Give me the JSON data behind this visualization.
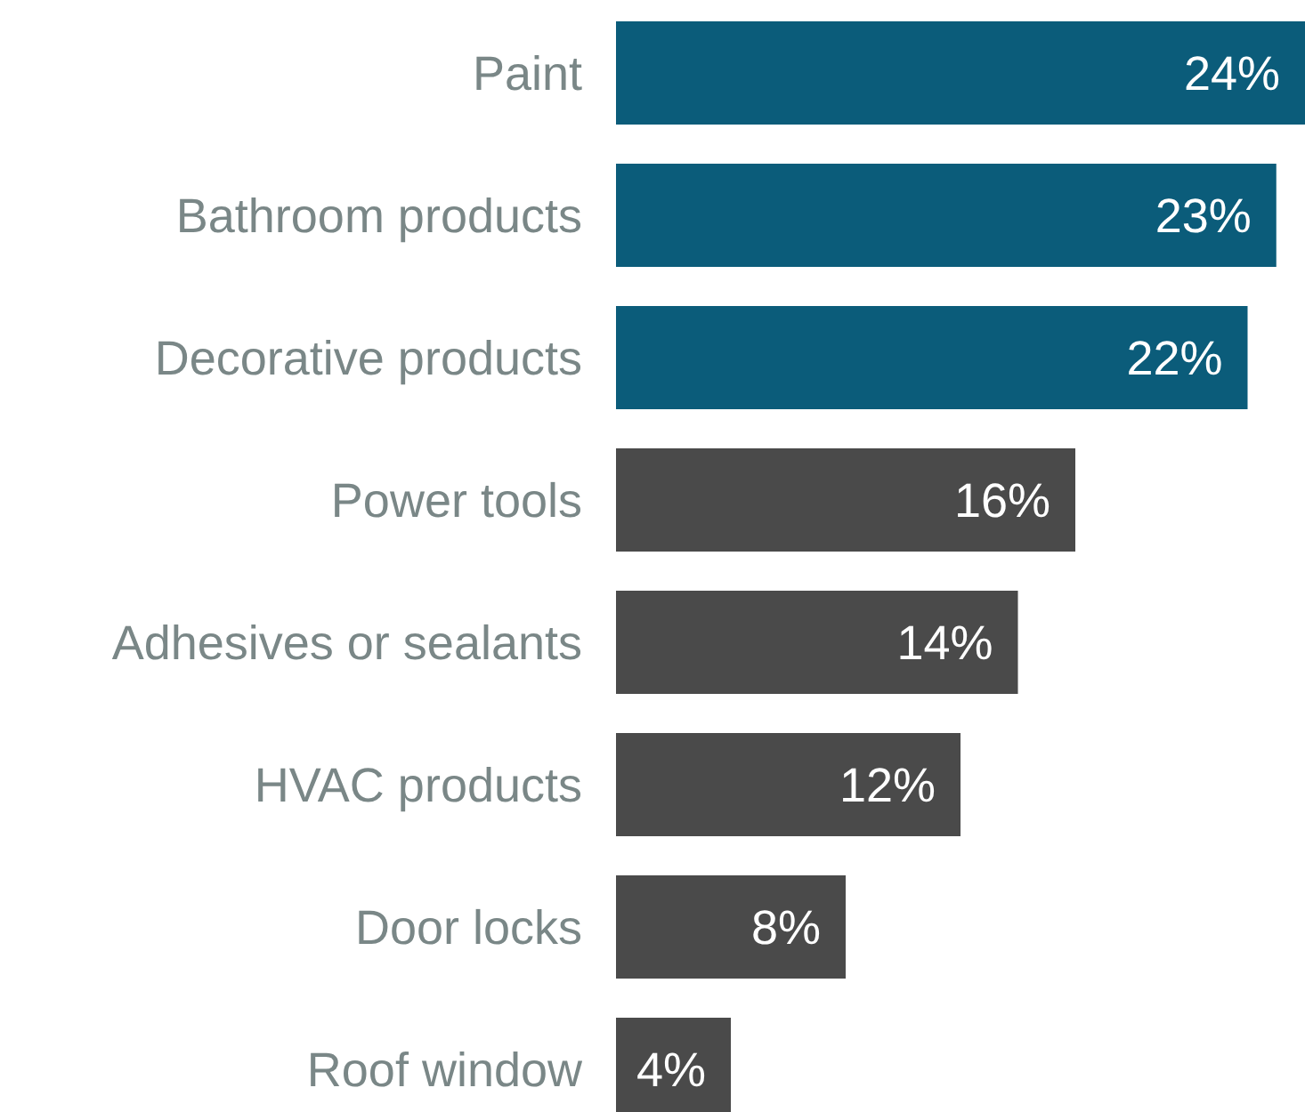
{
  "chart_data": {
    "type": "bar",
    "orientation": "horizontal",
    "categories": [
      "Paint",
      "Bathroom products",
      "Decorative products",
      "Power tools",
      "Adhesives or sealants",
      "HVAC products",
      "Door locks",
      "Roof window"
    ],
    "values": [
      24,
      23,
      22,
      16,
      14,
      12,
      8,
      4
    ],
    "colors": [
      "#0b5c7a",
      "#0b5c7a",
      "#0b5c7a",
      "#4a4a4a",
      "#4a4a4a",
      "#4a4a4a",
      "#4a4a4a",
      "#4a4a4a"
    ],
    "value_labels": [
      "24%",
      "23%",
      "22%",
      "16%",
      "14%",
      "12%",
      "8%",
      "4%"
    ]
  }
}
